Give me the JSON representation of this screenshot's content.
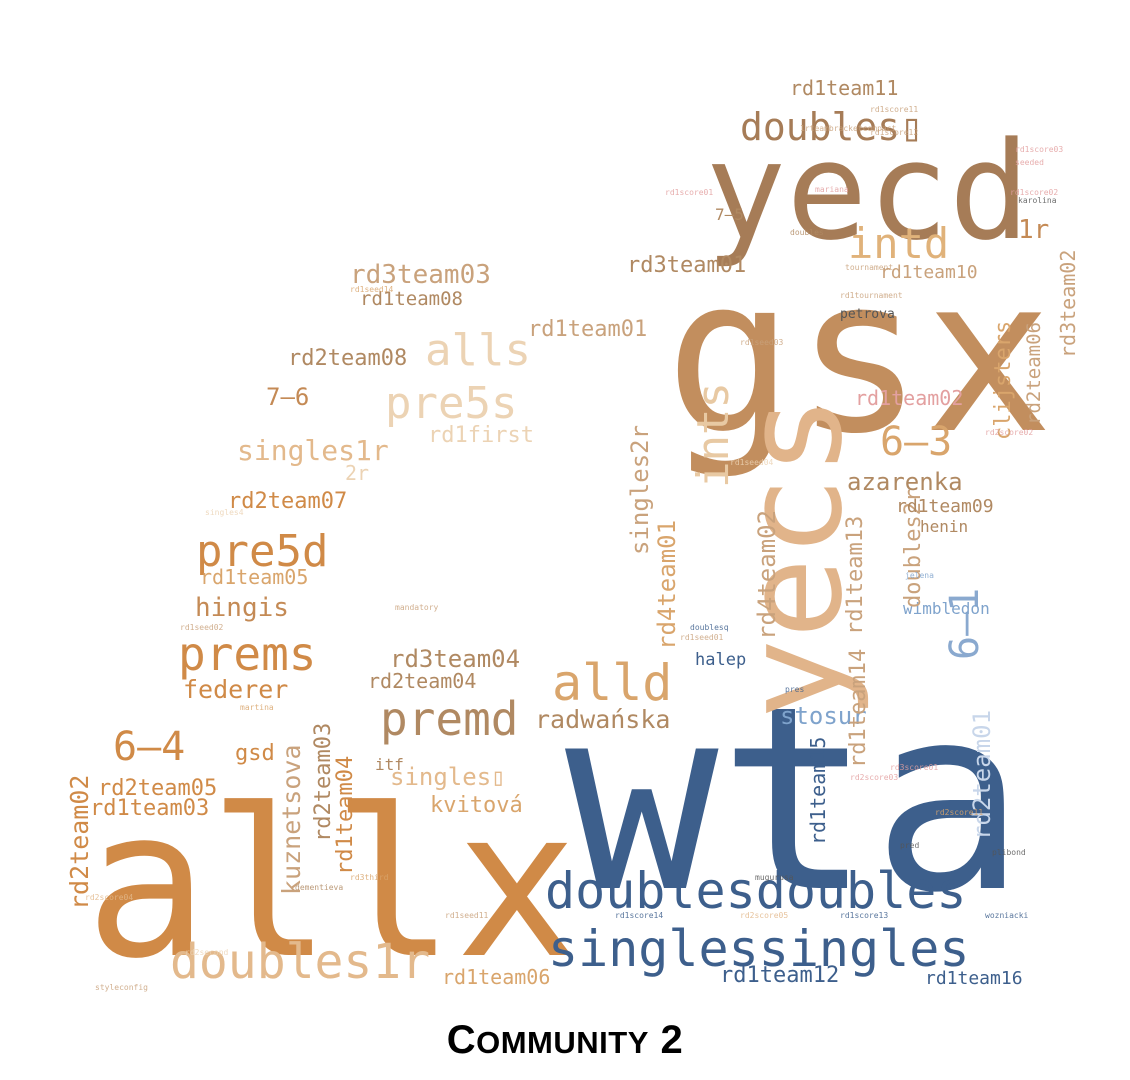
{
  "caption": {
    "first": "C",
    "rest": "OMMUNITY",
    "number": "2"
  },
  "colors": {
    "orange": "#d08a47",
    "tan": "#b08962",
    "navy": "#3d5f8c",
    "peach": "#e1b48a",
    "light": "#ecd3b4",
    "blue": "#7fa3cc",
    "pink": "#e3a0a0"
  },
  "words": [
    {
      "text": "wta",
      "color": "#3d5f8c"
    },
    {
      "text": "allx",
      "color": "#d08a47"
    },
    {
      "text": "gsx",
      "color": "#c28e5e"
    },
    {
      "text": "yecd",
      "color": "#a67c57"
    },
    {
      "text": "yecs",
      "color": "#e1b48a"
    },
    {
      "text": "doublesdoubles",
      "color": "#3d5f8c"
    },
    {
      "text": "singlessingles",
      "color": "#3d5f8c"
    },
    {
      "text": "doubles1r",
      "color": "#e3b98c"
    },
    {
      "text": "premd",
      "color": "#b08962"
    },
    {
      "text": "alld",
      "color": "#d9a56c"
    },
    {
      "text": "prems",
      "color": "#d08a47"
    },
    {
      "text": "pre5d",
      "color": "#d08a47"
    },
    {
      "text": "pre5s",
      "color": "#ecd3b4"
    },
    {
      "text": "alls",
      "color": "#ecd3b4"
    },
    {
      "text": "intd",
      "color": "#e0b27a"
    },
    {
      "text": "ints",
      "color": "#e8c9a3"
    },
    {
      "text": "doubles▯",
      "color": "#a67c57"
    },
    {
      "text": "6–3",
      "color": "#d9a56c"
    },
    {
      "text": "6–4",
      "color": "#d08a47"
    },
    {
      "text": "6–1",
      "color": "#8aa9cf"
    },
    {
      "text": "7–6",
      "color": "#c48a55"
    },
    {
      "text": "7–5",
      "color": "#b08962"
    },
    {
      "text": "azarenka",
      "color": "#b08962"
    },
    {
      "text": "radwańska",
      "color": "#b08962"
    },
    {
      "text": "federer",
      "color": "#d08a47"
    },
    {
      "text": "hingis",
      "color": "#c48a55"
    },
    {
      "text": "kvitová",
      "color": "#d9a56c"
    },
    {
      "text": "kuznetsova",
      "color": "#c9a27c"
    },
    {
      "text": "stosur",
      "color": "#7fa3cc"
    },
    {
      "text": "halep",
      "color": "#3d5f8c"
    },
    {
      "text": "henin",
      "color": "#b08962"
    },
    {
      "text": "wimbledon",
      "color": "#7fa3cc"
    },
    {
      "text": "clijsters",
      "color": "#d9a56c"
    },
    {
      "text": "petrova",
      "color": "#555555"
    },
    {
      "text": "gsd",
      "color": "#d08a47"
    },
    {
      "text": "itf",
      "color": "#b08962"
    },
    {
      "text": "2r",
      "color": "#ecd3b4"
    },
    {
      "text": "1r",
      "color": "#c48a55"
    },
    {
      "text": "singles1r",
      "color": "#e3b98c"
    },
    {
      "text": "singles2r",
      "color": "#c9a27c"
    },
    {
      "text": "doubles2r",
      "color": "#c9a27c"
    },
    {
      "text": "singles▯",
      "color": "#e3b98c"
    },
    {
      "text": "rd1first",
      "color": "#ecd3b4"
    },
    {
      "text": "rd1team01",
      "color": "#c9a27c"
    },
    {
      "text": "rd1team02",
      "color": "#e3a0a0"
    },
    {
      "text": "rd1team03",
      "color": "#d08a47"
    },
    {
      "text": "rd1team04",
      "color": "#d08a47"
    },
    {
      "text": "rd1team05",
      "color": "#d9a56c"
    },
    {
      "text": "rd1team06",
      "color": "#d9a56c"
    },
    {
      "text": "rd1team08",
      "color": "#b08962"
    },
    {
      "text": "rd1team09",
      "color": "#b08962"
    },
    {
      "text": "rd1team10",
      "color": "#c9a27c"
    },
    {
      "text": "rd1team11",
      "color": "#b08962"
    },
    {
      "text": "rd1team12",
      "color": "#3d5f8c"
    },
    {
      "text": "rd1team13",
      "color": "#c9a27c"
    },
    {
      "text": "rd1team14",
      "color": "#c9a27c"
    },
    {
      "text": "rd1team15",
      "color": "#3d5f8c"
    },
    {
      "text": "rd1team16",
      "color": "#3d5f8c"
    },
    {
      "text": "rd2team01",
      "color": "#c8d6ea"
    },
    {
      "text": "rd2team02",
      "color": "#d08a47"
    },
    {
      "text": "rd2team03",
      "color": "#b08962"
    },
    {
      "text": "rd2team04",
      "color": "#b08962"
    },
    {
      "text": "rd2team05",
      "color": "#d08a47"
    },
    {
      "text": "rd2team06",
      "color": "#c9a27c"
    },
    {
      "text": "rd2team07",
      "color": "#d08a47"
    },
    {
      "text": "rd2team08",
      "color": "#b08962"
    },
    {
      "text": "rd3team01",
      "color": "#b08962"
    },
    {
      "text": "rd3team02",
      "color": "#c9a27c"
    },
    {
      "text": "rd3team03",
      "color": "#c9a27c"
    },
    {
      "text": "rd3team04",
      "color": "#b08962"
    },
    {
      "text": "rd4team01",
      "color": "#d9a56c"
    },
    {
      "text": "rd4team02",
      "color": "#c9a27c"
    }
  ],
  "tiny_words": [
    {
      "text": "rd1score02",
      "color": "#e3a0a0"
    },
    {
      "text": "rd1score11",
      "color": "#c9a27c"
    },
    {
      "text": "rd2score11",
      "color": "#d9a56c"
    },
    {
      "text": "rd1score12",
      "color": "#c9a27c"
    },
    {
      "text": "rd1score03",
      "color": "#e3a0a0"
    },
    {
      "text": "rd1score01",
      "color": "#e3a0a0"
    },
    {
      "text": "rd2score03",
      "color": "#e3a0a0"
    },
    {
      "text": "rd2score02",
      "color": "#e3a0a0"
    },
    {
      "text": "rd3score01",
      "color": "#e3a0a0"
    },
    {
      "text": "rd1score14",
      "color": "#3d5f8c"
    },
    {
      "text": "rd1score13",
      "color": "#3d5f8c"
    },
    {
      "text": "rd2score05",
      "color": "#e3b98c"
    },
    {
      "text": "rd2score04",
      "color": "#e3b98c"
    },
    {
      "text": "rd1seed01",
      "color": "#c9a27c"
    },
    {
      "text": "rd1seed02",
      "color": "#c9a27c"
    },
    {
      "text": "rd1seed03",
      "color": "#c9a27c"
    },
    {
      "text": "rd1seed04",
      "color": "#ecd3b4"
    },
    {
      "text": "rd1seed11",
      "color": "#c9a27c"
    },
    {
      "text": "rd1seed14",
      "color": "#d9a56c"
    },
    {
      "text": "rd1tournament",
      "color": "#c9a27c"
    },
    {
      "text": "rd2second",
      "color": "#ecd3b4"
    },
    {
      "text": "rd3third",
      "color": "#d9a56c"
    },
    {
      "text": "singles4",
      "color": "#ecd3b4"
    },
    {
      "text": "styleconfig",
      "color": "#c9a27c"
    },
    {
      "text": "karolina",
      "color": "#555555"
    },
    {
      "text": "martina",
      "color": "#d9a56c"
    },
    {
      "text": "mariana",
      "color": "#e3a0a0"
    },
    {
      "text": "jelena",
      "color": "#7fa3cc"
    },
    {
      "text": "pres",
      "color": "#3d5f8c"
    },
    {
      "text": "pred",
      "color": "#555555"
    },
    {
      "text": "plibond",
      "color": "#555555"
    },
    {
      "text": "wozniacki",
      "color": "#3d5f8c"
    },
    {
      "text": "doublesq",
      "color": "#3d5f8c"
    },
    {
      "text": "dementieva",
      "color": "#b08962"
    },
    {
      "text": "mugurusa",
      "color": "#555555"
    },
    {
      "text": "seeded",
      "color": "#e3a0a0"
    },
    {
      "text": "mandatory",
      "color": "#c9a27c"
    },
    {
      "text": "doubles",
      "color": "#b08962"
    },
    {
      "text": "1rteambracketcompact",
      "color": "#c9a27c"
    },
    {
      "text": "tournament",
      "color": "#c9a27c"
    }
  ]
}
